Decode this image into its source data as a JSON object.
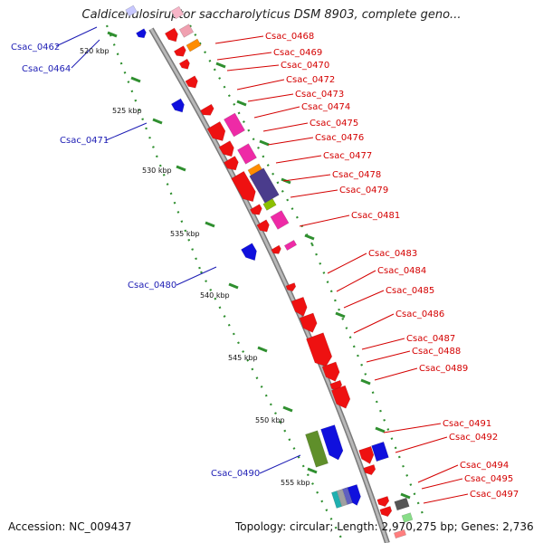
{
  "title": "Caldicellulosiruptor saccharolyticus DSM 8903, complete geno...",
  "accession": "Accession: NC_009437",
  "topology": "Topology: circular; Length: 2,970,275 bp; Genes: 2,736",
  "colors": {
    "backbone": "#9a9a9a",
    "dots": "#2f8f2f",
    "forward_label": "#d40000",
    "reverse_label": "#1c1cb4"
  },
  "kbp_ticks": [
    "520 kbp",
    "525 kbp",
    "530 kbp",
    "535 kbp",
    "540 kbp",
    "545 kbp",
    "550 kbp",
    "555 kbp"
  ],
  "forward_labels": [
    "Csac_0468",
    "Csac_0469",
    "Csac_0470",
    "Csac_0472",
    "Csac_0473",
    "Csac_0474",
    "Csac_0475",
    "Csac_0476",
    "Csac_0477",
    "Csac_0478",
    "Csac_0479",
    "Csac_0481",
    "Csac_0483",
    "Csac_0484",
    "Csac_0485",
    "Csac_0486",
    "Csac_0487",
    "Csac_0488",
    "Csac_0489",
    "Csac_0491",
    "Csac_0492",
    "Csac_0494",
    "Csac_0495",
    "Csac_0497"
  ],
  "reverse_labels": [
    "Csac_0462",
    "Csac_0464",
    "Csac_0471",
    "Csac_0480",
    "Csac_0490"
  ]
}
